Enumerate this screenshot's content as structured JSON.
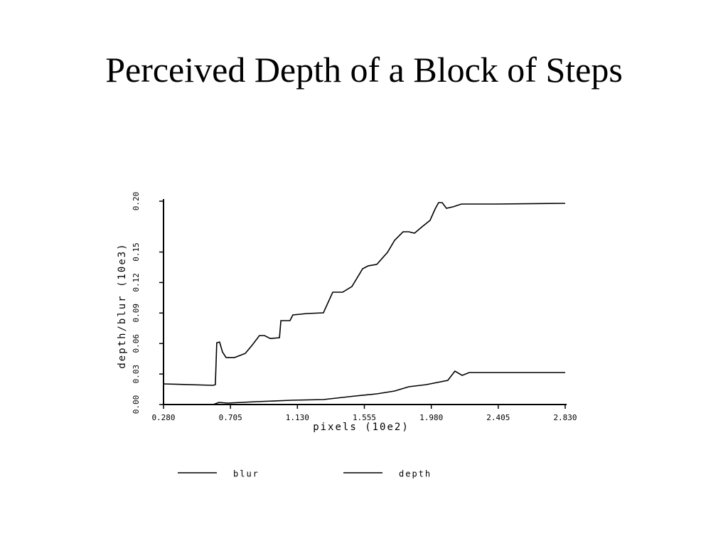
{
  "chart_data": {
    "type": "line",
    "title": "Perceived Depth of a Block of Steps",
    "x_label": "pixels (10e2)",
    "y_label": "depth/blur (10e3)",
    "xlim": [
      0.28,
      2.83
    ],
    "ylim": [
      0,
      0.2
    ],
    "xticks": [
      {
        "value": 0.28,
        "label": "0.280"
      },
      0.705,
      {
        "value": 1.13,
        "label": "1.130"
      },
      1.555,
      {
        "value": 1.98,
        "label": "1.980"
      },
      2.405,
      {
        "value": 2.83,
        "label": "2.830"
      }
    ],
    "yticks": [
      {
        "value": 0,
        "label": "0.00"
      },
      0.03,
      0.06,
      0.09,
      0.12,
      0.15,
      {
        "value": 0.2,
        "label": "0.20"
      }
    ],
    "grid": false,
    "legend": "bottom",
    "series": [
      {
        "name": "blur",
        "color": "#000000",
        "x": [
          0.28,
          0.596,
          0.632,
          0.686,
          0.867,
          1.092,
          1.295,
          1.498,
          1.634,
          1.747,
          1.837,
          1.949,
          2.085,
          2.13,
          2.176,
          2.221,
          2.83
        ],
        "values": [
          0,
          0,
          0.0021,
          0.0014,
          0.0028,
          0.0042,
          0.0049,
          0.0084,
          0.0105,
          0.0133,
          0.0175,
          0.0196,
          0.0238,
          0.0329,
          0.0287,
          0.0315,
          0.0315
        ]
      },
      {
        "name": "depth",
        "color": "#000000",
        "x": [
          0.28,
          0.596,
          0.609,
          0.618,
          0.636,
          0.654,
          0.677,
          0.731,
          0.799,
          0.844,
          0.889,
          0.921,
          0.957,
          1.016,
          1.025,
          1.083,
          1.101,
          1.192,
          1.295,
          1.354,
          1.417,
          1.476,
          1.544,
          1.58,
          1.634,
          1.702,
          1.747,
          1.801,
          1.837,
          1.873,
          1.927,
          1.972,
          2.004,
          2.026,
          2.049,
          2.076,
          2.117,
          2.171,
          2.388,
          2.83
        ],
        "values": [
          0.0203,
          0.0189,
          0.0196,
          0.0608,
          0.0615,
          0.0517,
          0.0462,
          0.0462,
          0.0503,
          0.0587,
          0.0678,
          0.0678,
          0.065,
          0.0657,
          0.0825,
          0.0825,
          0.0881,
          0.0895,
          0.0902,
          0.1105,
          0.1105,
          0.1161,
          0.1336,
          0.1364,
          0.1378,
          0.1497,
          0.1615,
          0.1699,
          0.1699,
          0.1685,
          0.1755,
          0.1811,
          0.1923,
          0.1986,
          0.1986,
          0.193,
          0.1944,
          0.1972,
          0.1972,
          0.1979
        ]
      }
    ]
  }
}
